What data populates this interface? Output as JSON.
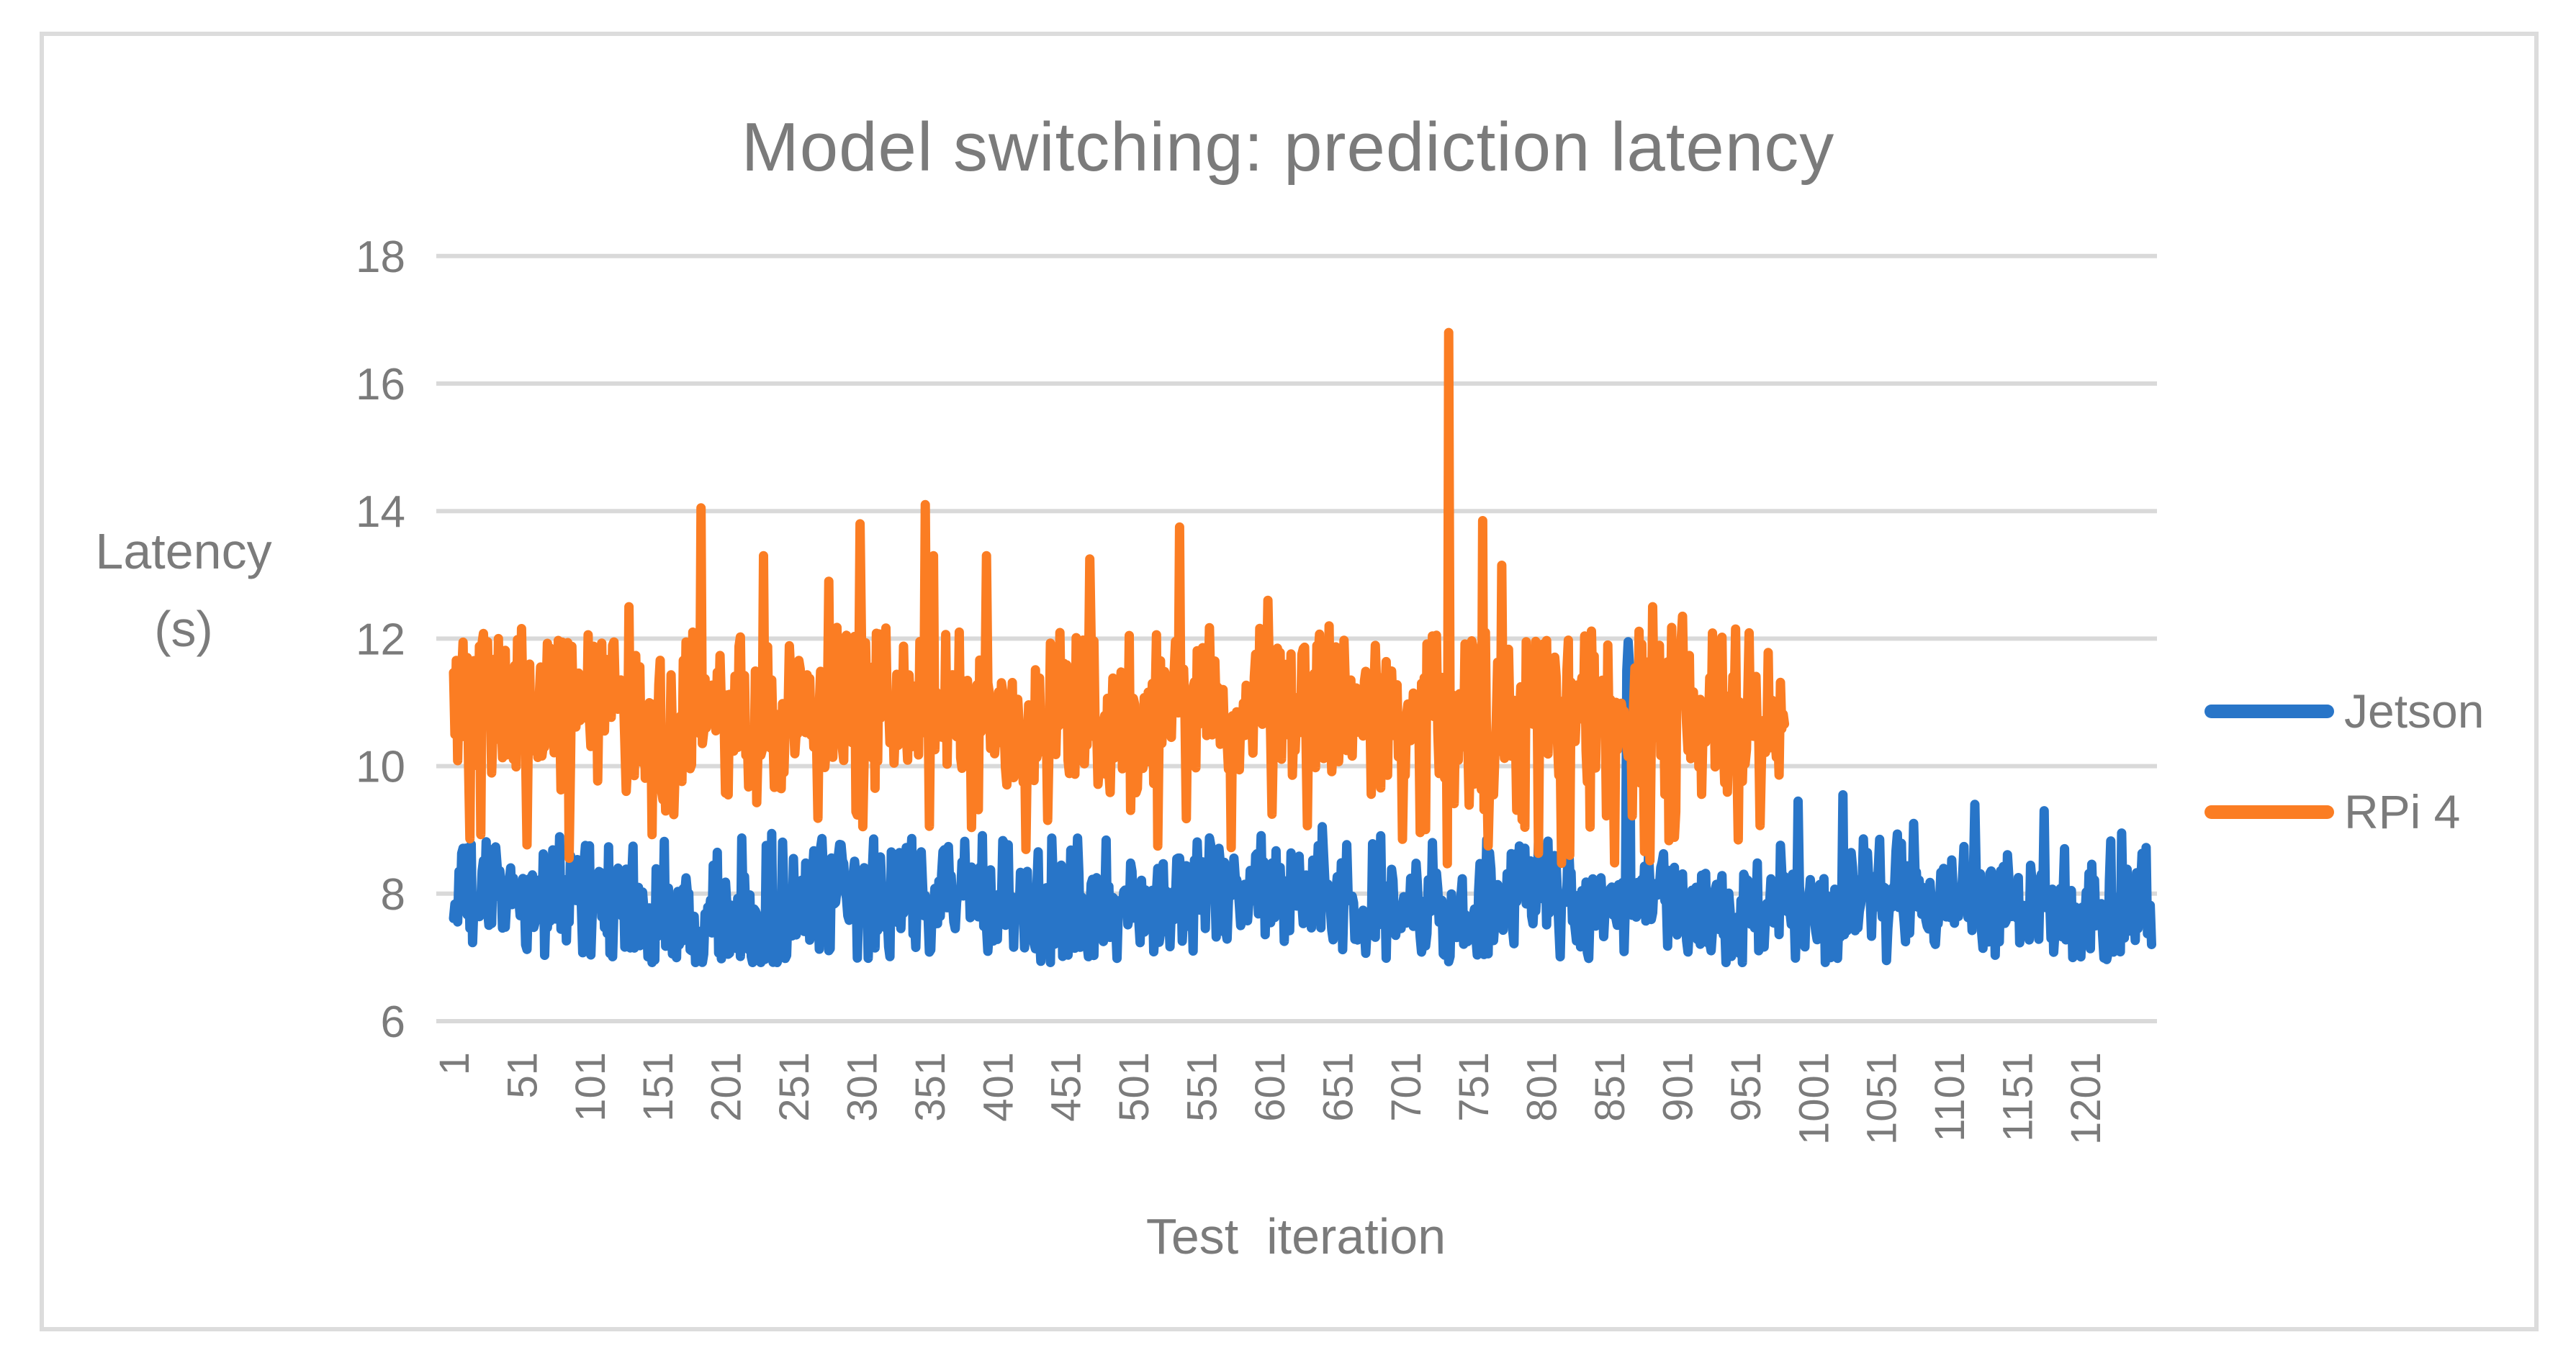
{
  "title": "Model switching: prediction latency",
  "chart_data": {
    "type": "line",
    "title": "Model switching: prediction latency",
    "xlabel": "Test  iteration",
    "ylabel": "Latency (s)",
    "ylabel_lines": [
      "Latency",
      "(s)"
    ],
    "xlim": [
      1,
      1250
    ],
    "ylim": [
      6,
      18
    ],
    "grid": true,
    "legend_position": "right",
    "x_ticks": [
      1,
      51,
      101,
      151,
      201,
      251,
      301,
      351,
      401,
      451,
      501,
      551,
      601,
      651,
      701,
      751,
      801,
      851,
      901,
      951,
      1001,
      1051,
      1101,
      1151,
      1201
    ],
    "y_ticks": [
      6,
      8,
      10,
      12,
      14,
      16,
      18
    ],
    "noise_seed": 1234,
    "series": [
      {
        "name": "Jetson",
        "color": "#2875c8",
        "x_start": 1,
        "x_end": 1250,
        "baseline": {
          "mean": 7.8,
          "spread": 0.9,
          "min": 6.92,
          "max": 8.95,
          "low_prob": 0.05,
          "low_range": [
            6.95,
            7.15
          ],
          "high_prob": 0.05,
          "high_range": [
            8.6,
            8.95
          ]
        },
        "spikes": [
          [
            640,
            9.05
          ],
          [
            864,
            11.5
          ],
          [
            865,
            11.95
          ],
          [
            866,
            11.55
          ],
          [
            990,
            9.45
          ],
          [
            1023,
            9.55
          ],
          [
            1075,
            9.1
          ],
          [
            1120,
            9.4
          ],
          [
            1171,
            9.3
          ],
          [
            1228,
            8.95
          ]
        ]
      },
      {
        "name": "RPi 4",
        "color": "#fb7d23",
        "x_start": 1,
        "x_end": 980,
        "baseline": {
          "mean": 10.72,
          "spread": 1.32,
          "min": 8.45,
          "max": 12.2,
          "low_prob": 0.05,
          "low_range": [
            8.45,
            9.35
          ],
          "high_prob": 0.07,
          "high_range": [
            11.85,
            12.2
          ]
        },
        "spikes": [
          [
            130,
            12.5
          ],
          [
            183,
            14.05
          ],
          [
            229,
            13.3
          ],
          [
            277,
            12.9
          ],
          [
            300,
            13.8
          ],
          [
            348,
            14.1
          ],
          [
            354,
            13.3
          ],
          [
            393,
            13.3
          ],
          [
            469,
            13.25
          ],
          [
            535,
            13.75
          ],
          [
            600,
            12.6
          ],
          [
            645,
            12.2
          ],
          [
            733,
            16.8
          ],
          [
            758,
            13.85
          ],
          [
            772,
            13.15
          ],
          [
            863,
            10.6
          ],
          [
            864,
            10.3
          ],
          [
            865,
            10.15
          ],
          [
            866,
            10.3
          ],
          [
            867,
            10.6
          ],
          [
            883,
            12.5
          ],
          [
            905,
            12.35
          ],
          [
            944,
            12.15
          ]
        ]
      }
    ]
  },
  "legend": {
    "items": [
      {
        "label": "Jetson",
        "swatch": "jetson-line-swatch"
      },
      {
        "label": "RPi 4",
        "swatch": "rpi4-line-swatch"
      }
    ]
  },
  "colors": {
    "text": "#7b7b7b",
    "grid": "#d9d9d9",
    "frame_border": "#dcdcdc",
    "background": "#ffffff",
    "jetson": "#2875c8",
    "rpi4": "#fb7d23"
  }
}
